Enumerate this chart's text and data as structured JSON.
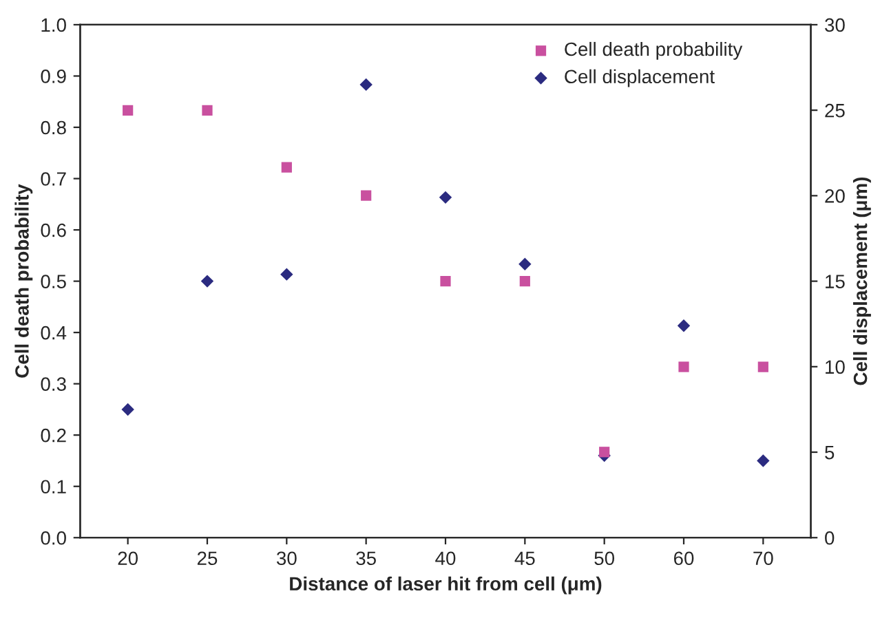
{
  "chart_data": {
    "type": "scatter",
    "xlabel": "Distance of laser hit from cell (μm)",
    "ylabel": "Cell death probability",
    "y2label": "Cell displacement (μm)",
    "categories": [
      "20",
      "25",
      "30",
      "35",
      "40",
      "45",
      "50",
      "60",
      "70"
    ],
    "series": [
      {
        "name": "Cell death probability",
        "color": "#c9509f",
        "marker": "square",
        "values": [
          0.833,
          0.833,
          0.722,
          0.667,
          0.5,
          0.5,
          0.167,
          0.333,
          0.333
        ]
      },
      {
        "name": "Cell displacement",
        "color": "#2b2b80",
        "marker": "diamond",
        "axis": "y2",
        "values": [
          7.5,
          15.0,
          15.4,
          26.5,
          19.9,
          16.0,
          4.8,
          12.4,
          4.5
        ]
      }
    ],
    "ylim": [
      0,
      1
    ],
    "yticks": [
      {
        "value": 0,
        "label": "0.0"
      },
      {
        "value": 0.1,
        "label": "0.1"
      },
      {
        "value": 0.2,
        "label": "0.2"
      },
      {
        "value": 0.3,
        "label": "0.3"
      },
      {
        "value": 0.4,
        "label": "0.4"
      },
      {
        "value": 0.5,
        "label": "0.5"
      },
      {
        "value": 0.6,
        "label": "0.6"
      },
      {
        "value": 0.7,
        "label": "0.7"
      },
      {
        "value": 0.8,
        "label": "0.8"
      },
      {
        "value": 0.9,
        "label": "0.9"
      },
      {
        "value": 1,
        "label": "1.0"
      }
    ],
    "y2lim": [
      0,
      30
    ],
    "y2ticks": [
      0,
      5,
      10,
      15,
      20,
      25,
      30
    ],
    "legend": "top right",
    "grid": false
  }
}
